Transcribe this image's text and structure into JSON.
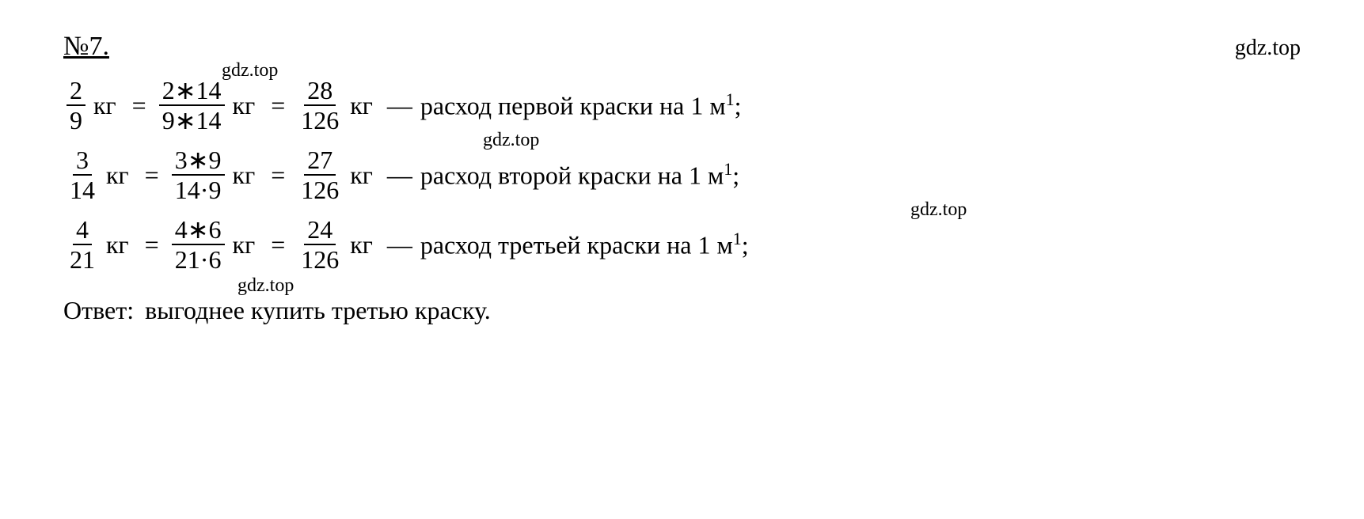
{
  "header": {
    "problem_number": "№7.",
    "watermark": "gdz.top"
  },
  "lines": [
    {
      "frac1_num": "2",
      "frac1_denom": "9",
      "unit1": "кг",
      "eq1": "=",
      "frac2_num": "2∗14",
      "frac2_denom": "9∗14",
      "unit2": "кг",
      "eq2": "=",
      "frac3_num": "28",
      "frac3_denom": "126",
      "unit3": "кг",
      "dash": "—",
      "text": "расход первой краски на 1 м",
      "sup": "1",
      "semicolon": ";",
      "watermark": "gdz.top",
      "wm_class": "wm1"
    },
    {
      "frac1_num": "3",
      "frac1_denom": "14",
      "unit1": "кг",
      "eq1": "=",
      "frac2_num": "3∗9",
      "frac2_denom": "14·9",
      "unit2": "кг",
      "eq2": "=",
      "frac3_num": "27",
      "frac3_denom": "126",
      "unit3": "кг",
      "dash": "—",
      "text": "расход второй краски на 1 м",
      "sup": "1",
      "semicolon": ";",
      "watermark": "gdz.top",
      "wm_class": "wm2"
    },
    {
      "frac1_num": "4",
      "frac1_denom": "21",
      "unit1": "кг",
      "eq1": "=",
      "frac2_num": "4∗6",
      "frac2_denom": "21·6",
      "unit2": "кг",
      "eq2": "=",
      "frac3_num": "24",
      "frac3_denom": "126",
      "unit3": "кг",
      "dash": "—",
      "text": "расход третьей краски на 1 м",
      "sup": "1",
      "semicolon": ";",
      "watermark": "gdz.top",
      "wm_class": "wm3"
    }
  ],
  "answer": {
    "label": "Ответ:",
    "text": "выгоднее купить третью краску.",
    "watermark": "gdz.top"
  }
}
